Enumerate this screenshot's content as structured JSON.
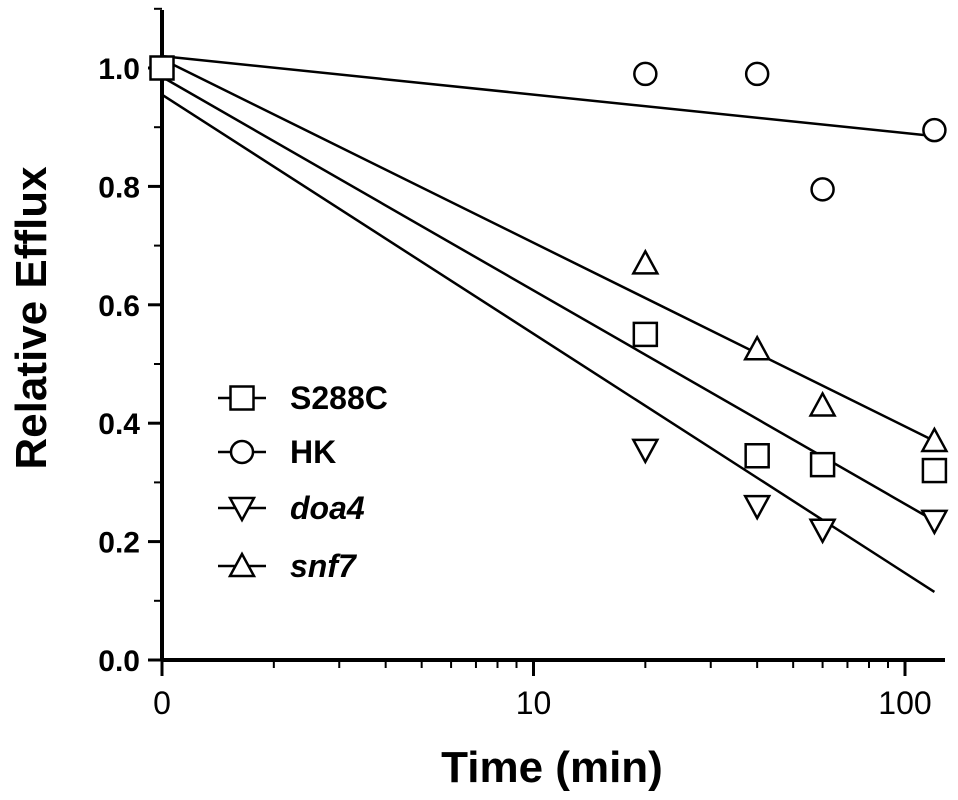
{
  "chart_data": {
    "type": "scatter",
    "xlabel": "Time (min)",
    "ylabel": "Relative Efflux",
    "xscale": "log",
    "xlim": [
      1,
      120
    ],
    "ylim": [
      0,
      1.1
    ],
    "x_ticks": [
      {
        "value": 1,
        "label": "0"
      },
      {
        "value": 10,
        "label": "10"
      },
      {
        "value": 100,
        "label": "100"
      }
    ],
    "y_ticks": [
      {
        "value": 0.0,
        "label": "0.0"
      },
      {
        "value": 0.2,
        "label": "0.2"
      },
      {
        "value": 0.4,
        "label": "0.4"
      },
      {
        "value": 0.6,
        "label": "0.6"
      },
      {
        "value": 0.8,
        "label": "0.8"
      },
      {
        "value": 1.0,
        "label": "1.0"
      }
    ],
    "grid": false,
    "legend_position": "bottom-left",
    "series": [
      {
        "name": "S288C",
        "italic": false,
        "marker": "square",
        "points": [
          [
            1,
            1.0
          ],
          [
            20,
            0.55
          ],
          [
            40,
            0.345
          ],
          [
            60,
            0.33
          ],
          [
            120,
            0.32
          ]
        ],
        "fit": [
          [
            1,
            0.985
          ],
          [
            120,
            0.235
          ]
        ]
      },
      {
        "name": "HK",
        "italic": false,
        "marker": "circle",
        "points": [
          [
            20,
            0.99
          ],
          [
            40,
            0.99
          ],
          [
            60,
            0.795
          ],
          [
            120,
            0.895
          ]
        ],
        "fit": [
          [
            1,
            1.02
          ],
          [
            120,
            0.885
          ]
        ]
      },
      {
        "name": "doa4",
        "italic": true,
        "marker": "triangle-down",
        "points": [
          [
            20,
            0.355
          ],
          [
            40,
            0.26
          ],
          [
            60,
            0.22
          ],
          [
            120,
            0.235
          ]
        ],
        "fit": [
          [
            1,
            0.955
          ],
          [
            120,
            0.115
          ]
        ]
      },
      {
        "name": "snf7",
        "italic": true,
        "marker": "triangle-up",
        "points": [
          [
            20,
            0.67
          ],
          [
            40,
            0.525
          ],
          [
            60,
            0.43
          ],
          [
            120,
            0.37
          ]
        ],
        "fit": [
          [
            1,
            1.015
          ],
          [
            120,
            0.37
          ]
        ]
      }
    ]
  }
}
